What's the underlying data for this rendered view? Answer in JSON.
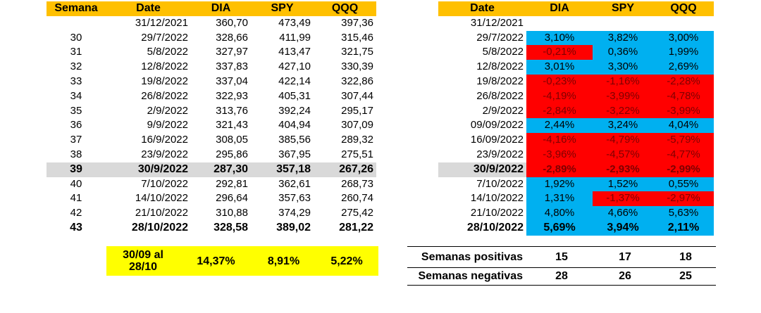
{
  "left_table": {
    "headers": [
      "Semana",
      "Date",
      "DIA",
      "SPY",
      "QQQ"
    ],
    "rows": [
      {
        "semana": "",
        "date": "31/12/2021",
        "dia": "360,70",
        "spy": "473,49",
        "qqq": "397,36"
      },
      {
        "semana": "30",
        "date": "29/7/2022",
        "dia": "328,66",
        "spy": "411,99",
        "qqq": "315,46"
      },
      {
        "semana": "31",
        "date": "5/8/2022",
        "dia": "327,97",
        "spy": "413,47",
        "qqq": "321,75"
      },
      {
        "semana": "32",
        "date": "12/8/2022",
        "dia": "337,83",
        "spy": "427,10",
        "qqq": "330,39"
      },
      {
        "semana": "33",
        "date": "19/8/2022",
        "dia": "337,04",
        "spy": "422,14",
        "qqq": "322,86"
      },
      {
        "semana": "34",
        "date": "26/8/2022",
        "dia": "322,93",
        "spy": "405,31",
        "qqq": "307,44"
      },
      {
        "semana": "35",
        "date": "2/9/2022",
        "dia": "313,76",
        "spy": "392,24",
        "qqq": "295,17"
      },
      {
        "semana": "36",
        "date": "9/9/2022",
        "dia": "321,43",
        "spy": "404,94",
        "qqq": "307,09"
      },
      {
        "semana": "37",
        "date": "16/9/2022",
        "dia": "308,05",
        "spy": "385,56",
        "qqq": "289,32"
      },
      {
        "semana": "38",
        "date": "23/9/2022",
        "dia": "295,86",
        "spy": "367,95",
        "qqq": "275,51"
      },
      {
        "semana": "39",
        "date": "30/9/2022",
        "dia": "287,30",
        "spy": "357,18",
        "qqq": "267,26"
      },
      {
        "semana": "40",
        "date": "7/10/2022",
        "dia": "292,81",
        "spy": "362,61",
        "qqq": "268,73"
      },
      {
        "semana": "41",
        "date": "14/10/2022",
        "dia": "296,64",
        "spy": "357,63",
        "qqq": "260,74"
      },
      {
        "semana": "42",
        "date": "21/10/2022",
        "dia": "310,88",
        "spy": "374,29",
        "qqq": "275,42"
      },
      {
        "semana": "43",
        "date": "28/10/2022",
        "dia": "328,58",
        "spy": "389,02",
        "qqq": "281,22"
      }
    ]
  },
  "summary": {
    "period_line1": "30/09 al",
    "period_line2": "28/10",
    "dia": "14,37%",
    "spy": "8,91%",
    "qqq": "5,22%"
  },
  "right_table": {
    "headers": [
      "Date",
      "DIA",
      "SPY",
      "QQQ"
    ],
    "rows": [
      {
        "date": "31/12/2021",
        "dia": "",
        "spy": "",
        "qqq": ""
      },
      {
        "date": "29/7/2022",
        "dia": "3,10%",
        "spy": "3,82%",
        "qqq": "3,00%"
      },
      {
        "date": "5/8/2022",
        "dia": "-0,21%",
        "spy": "0,36%",
        "qqq": "1,99%"
      },
      {
        "date": "12/8/2022",
        "dia": "3,01%",
        "spy": "3,30%",
        "qqq": "2,69%"
      },
      {
        "date": "19/8/2022",
        "dia": "-0,23%",
        "spy": "-1,16%",
        "qqq": "-2,28%"
      },
      {
        "date": "26/8/2022",
        "dia": "-4,19%",
        "spy": "-3,99%",
        "qqq": "-4,78%"
      },
      {
        "date": "2/9/2022",
        "dia": "-2,84%",
        "spy": "-3,22%",
        "qqq": "-3,99%"
      },
      {
        "date": "09/09/2022",
        "dia": "2,44%",
        "spy": "3,24%",
        "qqq": "4,04%"
      },
      {
        "date": "16/09/2022",
        "dia": "-4,16%",
        "spy": "-4,79%",
        "qqq": "-5,79%"
      },
      {
        "date": "23/9/2022",
        "dia": "-3,96%",
        "spy": "-4,57%",
        "qqq": "-4,77%"
      },
      {
        "date": "30/9/2022",
        "dia": "-2,89%",
        "spy": "-2,93%",
        "qqq": "-2,99%"
      },
      {
        "date": "7/10/2022",
        "dia": "1,92%",
        "spy": "1,52%",
        "qqq": "0,55%"
      },
      {
        "date": "14/10/2022",
        "dia": "1,31%",
        "spy": "-1,37%",
        "qqq": "-2,97%"
      },
      {
        "date": "21/10/2022",
        "dia": "4,80%",
        "spy": "4,66%",
        "qqq": "5,63%"
      },
      {
        "date": "28/10/2022",
        "dia": "5,69%",
        "spy": "3,94%",
        "qqq": "2,11%"
      }
    ]
  },
  "counts": {
    "positive_label": "Semanas positivas",
    "negative_label": "Semanas negativas",
    "positive": {
      "dia": "15",
      "spy": "17",
      "qqq": "18"
    },
    "negative": {
      "dia": "28",
      "spy": "26",
      "qqq": "25"
    }
  },
  "colors": {
    "header": "#ffc000",
    "summary": "#ffff00",
    "positive": "#00b0f0",
    "negative": "#ff0000",
    "highlight_row": "#d9d9d9"
  }
}
